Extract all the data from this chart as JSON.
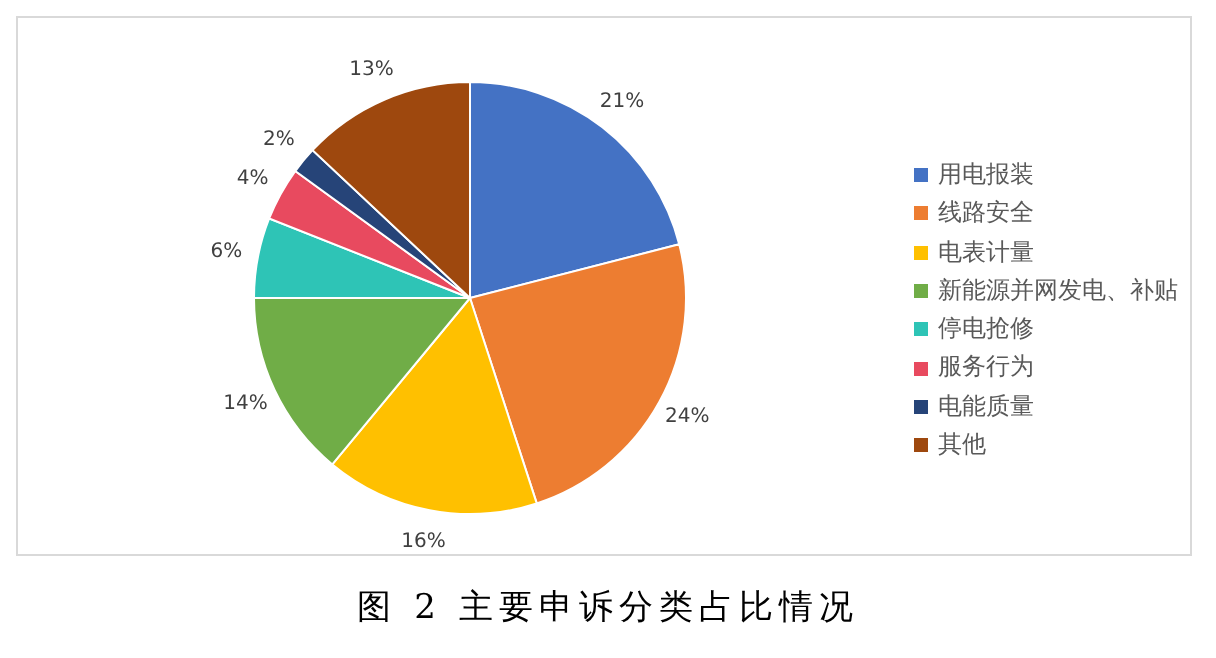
{
  "chart_data": {
    "type": "pie",
    "title": "图 2 主要申诉分类占比情况",
    "categories": [
      "用电报装",
      "线路安全",
      "电表计量",
      "新能源并网发电、补贴",
      "停电抢修",
      "服务行为",
      "电能质量",
      "其他"
    ],
    "values": [
      21,
      24,
      16,
      14,
      6,
      4,
      2,
      13
    ],
    "colors": [
      "#4472c4",
      "#ed7d31",
      "#ffc000",
      "#70ad47",
      "#2ec4b6",
      "#e84a5f",
      "#264478",
      "#9e480e"
    ],
    "value_labels": [
      "21%",
      "24%",
      "16%",
      "14%",
      "6%",
      "4%",
      "2%",
      "13%"
    ],
    "legend": "right"
  }
}
